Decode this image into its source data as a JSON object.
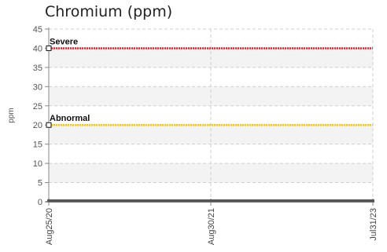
{
  "chart_data": {
    "type": "line",
    "title": "Chromium (ppm)",
    "xlabel": "",
    "ylabel": "ppm",
    "ylim": [
      0,
      45
    ],
    "yticks": [
      0,
      5,
      10,
      15,
      20,
      25,
      30,
      35,
      40,
      45
    ],
    "x": [
      "Aug25/20",
      "Aug30/21",
      "Jul31/23"
    ],
    "series": [
      {
        "name": "",
        "values": [
          0,
          0,
          0
        ],
        "color": "#555555"
      }
    ],
    "thresholds": [
      {
        "name": "Severe",
        "value": 40,
        "color": "#e8242a"
      },
      {
        "name": "Abnormal",
        "value": 20,
        "color": "#f2c61f"
      }
    ],
    "grid": true,
    "legend": "none"
  }
}
